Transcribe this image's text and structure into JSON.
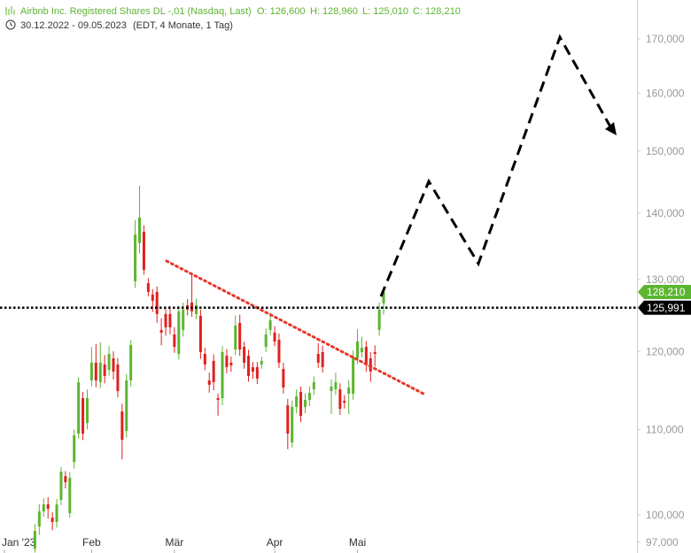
{
  "chart_data": {
    "type": "candlestick",
    "title": "Airbnb Inc. Registered Shares DL -,01 (Nasdaq, Last)",
    "ohlc_labels": [
      "O: 126,600",
      "H: 128,960",
      "L: 125,010",
      "C: 128,210"
    ],
    "date_range": "30.12.2022 - 09.05.2023",
    "info": "(EDT, 4 Monate, 1 Tag)",
    "up_color": "#5cb531",
    "down_color": "#e02020",
    "log_scale": true,
    "ylim": [
      95850,
      177520
    ],
    "yticks": [
      {
        "value": 97000,
        "label": "97,000"
      },
      {
        "value": 100000,
        "label": "100,000"
      },
      {
        "value": 110000,
        "label": "110,000"
      },
      {
        "value": 120000,
        "label": "120,000"
      },
      {
        "value": 130000,
        "label": "130,000"
      },
      {
        "value": 140000,
        "label": "140,000"
      },
      {
        "value": 150000,
        "label": "150,000"
      },
      {
        "value": 160000,
        "label": "160,000"
      },
      {
        "value": 170000,
        "label": "170,000"
      }
    ],
    "categories": [
      "Jan '23",
      null,
      null,
      null,
      null,
      null,
      null,
      null,
      null,
      null,
      null,
      null,
      null,
      null,
      null,
      null,
      null,
      null,
      null,
      null,
      "Feb",
      null,
      null,
      null,
      null,
      null,
      null,
      null,
      null,
      null,
      null,
      null,
      null,
      null,
      null,
      null,
      null,
      null,
      null,
      "Mär",
      null,
      null,
      null,
      null,
      null,
      null,
      null,
      null,
      null,
      null,
      null,
      null,
      null,
      null,
      null,
      null,
      null,
      null,
      null,
      null,
      null,
      null,
      "Apr",
      null,
      null,
      null,
      null,
      null,
      null,
      null,
      null,
      null,
      null,
      null,
      null,
      null,
      null,
      null,
      null,
      null,
      null,
      "Mai",
      null,
      null,
      null,
      null,
      null,
      null
    ],
    "open": [
      null,
      null,
      null,
      null,
      null,
      null,
      null,
      96320,
      98730,
      100400,
      101190,
      99700,
      99210,
      101690,
      104430,
      100200,
      106090,
      109490,
      113910,
      110800,
      116180,
      118500,
      115950,
      118260,
      117560,
      119070,
      118260,
      112230,
      109820,
      116180,
      129750,
      135400,
      137100,
      129490,
      127840,
      128220,
      122900,
      125100,
      125100,
      122290,
      119660,
      122900,
      126330,
      126710,
      125100,
      124850,
      119660,
      116180,
      118730,
      113910,
      113910,
      119420,
      118500,
      120250,
      123870,
      120610,
      119420,
      117910,
      117910,
      118260,
      120610,
      122900,
      122530,
      121560,
      117670,
      113000,
      108420,
      112790,
      114700,
      112790,
      113680,
      115040,
      119660,
      119900,
      null,
      114810,
      115040,
      115040,
      113570,
      114470,
      114470,
      119070,
      119900,
      120610,
      119070,
      119900,
      122900,
      126600
    ],
    "high": [
      null,
      null,
      null,
      null,
      null,
      null,
      null,
      99000,
      101200,
      101900,
      102000,
      100300,
      101800,
      105500,
      105000,
      104900,
      110000,
      116600,
      114700,
      115000,
      120600,
      121000,
      121200,
      119500,
      120700,
      120000,
      119100,
      113200,
      117000,
      121500,
      138900,
      144300,
      138100,
      130200,
      128600,
      129000,
      124500,
      126000,
      126200,
      123300,
      126200,
      126700,
      127200,
      131000,
      127300,
      125700,
      120500,
      117200,
      119600,
      114500,
      120700,
      120300,
      119300,
      124900,
      125000,
      121300,
      120200,
      118600,
      118600,
      119300,
      123100,
      125300,
      123400,
      122400,
      118500,
      113800,
      113600,
      115000,
      115400,
      114500,
      115400,
      116700,
      121100,
      120800,
      null,
      116300,
      117200,
      115800,
      114300,
      116200,
      120100,
      123000,
      122000,
      121400,
      119900,
      120800,
      126700,
      128960
    ],
    "low": [
      null,
      null,
      null,
      null,
      null,
      null,
      null,
      95900,
      97800,
      99800,
      99600,
      98300,
      98600,
      101100,
      103000,
      99700,
      105300,
      108900,
      108700,
      110000,
      115400,
      115300,
      115200,
      115800,
      116800,
      116300,
      114000,
      106400,
      109000,
      115400,
      128800,
      133800,
      130700,
      127600,
      125400,
      123900,
      120800,
      122100,
      122300,
      119800,
      118900,
      122000,
      124900,
      124700,
      124400,
      119000,
      117500,
      114600,
      114900,
      111700,
      113000,
      117100,
      117300,
      119500,
      119400,
      117700,
      116000,
      116400,
      115700,
      117700,
      119900,
      122200,
      120700,
      117800,
      114500,
      107600,
      107800,
      112000,
      110900,
      112000,
      112900,
      114300,
      117800,
      117200,
      null,
      111900,
      114300,
      111800,
      112600,
      111900,
      113700,
      118300,
      119200,
      117300,
      116000,
      118000,
      122100,
      125010
    ],
    "close": [
      null,
      null,
      null,
      null,
      null,
      null,
      null,
      98240,
      100400,
      101190,
      100690,
      99210,
      101190,
      104950,
      103720,
      104230,
      109280,
      115950,
      109490,
      113910,
      118500,
      116180,
      118500,
      116750,
      119660,
      117330,
      114810,
      108750,
      116180,
      120850,
      136700,
      139300,
      131420,
      128220,
      126960,
      125100,
      122530,
      123260,
      123260,
      120610,
      125470,
      125720,
      125720,
      125470,
      126330,
      119900,
      118260,
      115610,
      115950,
      113680,
      119900,
      117910,
      118150,
      123510,
      120250,
      118500,
      116750,
      117330,
      116420,
      118730,
      122290,
      124240,
      121330,
      118500,
      115270,
      109490,
      112790,
      114130,
      111680,
      113680,
      114580,
      115950,
      118500,
      117910,
      null,
      115380,
      115950,
      112560,
      113340,
      115270,
      119300,
      121330,
      120490,
      118260,
      117330,
      119660,
      125720,
      128210
    ],
    "last_label": "128,210",
    "reference_line": {
      "value": 125991,
      "label": "125,991"
    }
  }
}
